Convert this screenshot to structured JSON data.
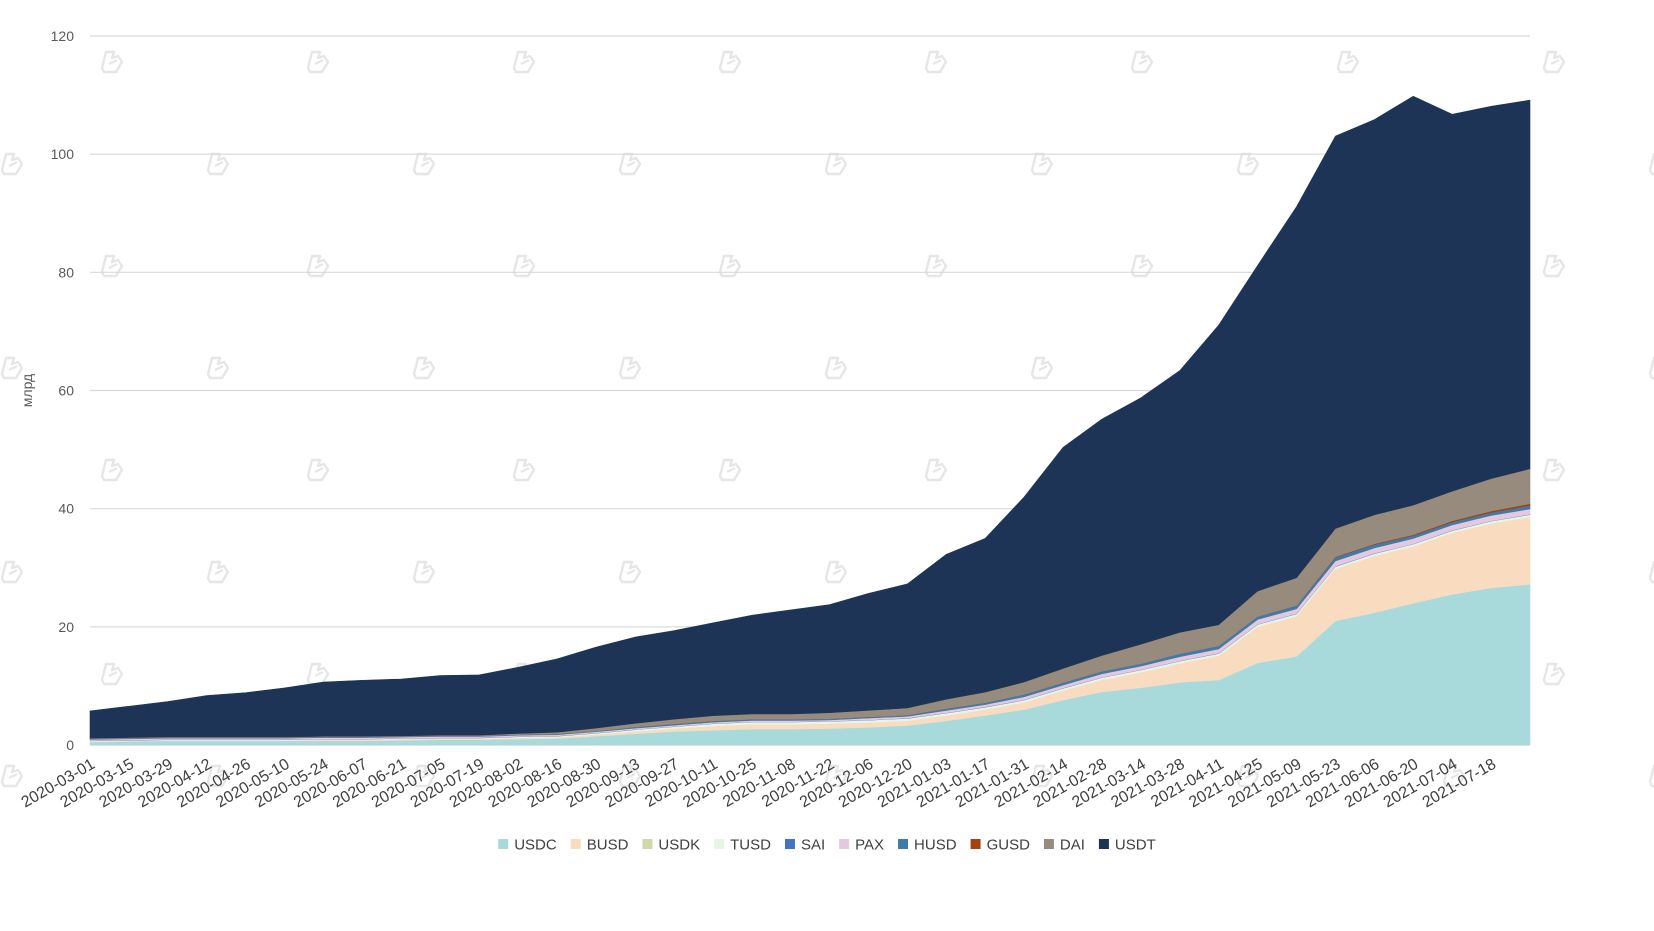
{
  "chart_data": {
    "type": "area",
    "stacked": true,
    "title": "",
    "xlabel": "",
    "ylabel": "млрд",
    "ylim": [
      0,
      120
    ],
    "y_ticks": [
      0,
      20,
      40,
      60,
      80,
      100,
      120
    ],
    "grid": "horizontal",
    "legend_position": "bottom",
    "x": [
      "2020-03-01",
      "2020-03-15",
      "2020-03-29",
      "2020-04-12",
      "2020-04-26",
      "2020-05-10",
      "2020-05-24",
      "2020-06-07",
      "2020-06-21",
      "2020-07-05",
      "2020-07-19",
      "2020-08-02",
      "2020-08-16",
      "2020-08-30",
      "2020-09-13",
      "2020-09-27",
      "2020-10-11",
      "2020-10-25",
      "2020-11-08",
      "2020-11-22",
      "2020-12-06",
      "2020-12-20",
      "2021-01-03",
      "2021-01-17",
      "2021-01-31",
      "2021-02-14",
      "2021-02-28",
      "2021-03-14",
      "2021-03-28",
      "2021-04-11",
      "2021-04-25",
      "2021-05-09",
      "2021-05-23",
      "2021-06-06",
      "2021-06-20",
      "2021-07-04",
      "2021-07-18",
      "2021-08-01"
    ],
    "x_tick_labels": [
      "2020-03-01",
      "2020-03-15",
      "2020-03-29",
      "2020-04-12",
      "2020-04-26",
      "2020-05-10",
      "2020-05-24",
      "2020-06-07",
      "2020-06-21",
      "2020-07-05",
      "2020-07-19",
      "2020-08-02",
      "2020-08-16",
      "2020-08-30",
      "2020-09-13",
      "2020-09-27",
      "2020-10-11",
      "2020-10-25",
      "2020-11-08",
      "2020-11-22",
      "2020-12-06",
      "2020-12-20",
      "2021-01-03",
      "2021-01-17",
      "2021-01-31",
      "2021-02-14",
      "2021-02-28",
      "2021-03-14",
      "2021-03-28",
      "2021-04-11",
      "2021-04-25",
      "2021-05-09",
      "2021-05-23",
      "2021-06-06",
      "2021-06-20",
      "2021-07-04",
      "2021-07-18"
    ],
    "series": [
      {
        "name": "USDC",
        "color": "#a8dadc",
        "values": [
          0.5,
          0.6,
          0.7,
          0.7,
          0.7,
          0.7,
          0.7,
          0.7,
          0.8,
          0.9,
          0.9,
          1.0,
          1.1,
          1.5,
          1.9,
          2.3,
          2.5,
          2.7,
          2.7,
          2.8,
          3.0,
          3.3,
          4.1,
          5.0,
          6.0,
          7.6,
          9.0,
          9.7,
          10.6,
          11.0,
          13.9,
          15.0,
          21.0,
          22.4,
          24.0,
          25.5,
          26.6,
          27.2
        ]
      },
      {
        "name": "BUSD",
        "color": "#f9dcc0",
        "values": [
          0.1,
          0.1,
          0.1,
          0.1,
          0.1,
          0.1,
          0.2,
          0.2,
          0.2,
          0.2,
          0.2,
          0.2,
          0.2,
          0.3,
          0.4,
          0.5,
          0.7,
          0.8,
          0.8,
          0.8,
          0.8,
          0.8,
          0.9,
          1.0,
          1.2,
          1.6,
          2.0,
          2.6,
          3.2,
          4.1,
          6.1,
          6.8,
          8.8,
          9.6,
          9.6,
          10.4,
          10.9,
          11.4
        ]
      },
      {
        "name": "USDK",
        "color": "#d2d7a8",
        "values": [
          0.0,
          0.0,
          0.0,
          0.0,
          0.0,
          0.0,
          0.0,
          0.0,
          0.0,
          0.0,
          0.0,
          0.0,
          0.0,
          0.0,
          0.0,
          0.0,
          0.0,
          0.0,
          0.0,
          0.0,
          0.0,
          0.0,
          0.0,
          0.0,
          0.0,
          0.0,
          0.0,
          0.0,
          0.0,
          0.0,
          0.0,
          0.0,
          0.0,
          0.0,
          0.0,
          0.0,
          0.0,
          0.0
        ]
      },
      {
        "name": "TUSD",
        "color": "#e7f5e7",
        "values": [
          0.1,
          0.1,
          0.1,
          0.1,
          0.1,
          0.1,
          0.1,
          0.1,
          0.1,
          0.1,
          0.1,
          0.2,
          0.2,
          0.2,
          0.3,
          0.3,
          0.4,
          0.4,
          0.4,
          0.4,
          0.4,
          0.4,
          0.4,
          0.4,
          0.4,
          0.4,
          0.4,
          0.4,
          0.4,
          0.4,
          0.4,
          0.4,
          0.4,
          0.4,
          0.4,
          0.4,
          0.4,
          0.4
        ]
      },
      {
        "name": "SAI",
        "color": "#4472c4",
        "values": [
          0.05,
          0.05,
          0.05,
          0.05,
          0.05,
          0.05,
          0.05,
          0.05,
          0.05,
          0.05,
          0.05,
          0.05,
          0.05,
          0.05,
          0.05,
          0.05,
          0.05,
          0.05,
          0.05,
          0.05,
          0.05,
          0.05,
          0.05,
          0.05,
          0.05,
          0.05,
          0.05,
          0.05,
          0.05,
          0.05,
          0.05,
          0.05,
          0.05,
          0.05,
          0.05,
          0.05,
          0.05,
          0.05
        ]
      },
      {
        "name": "PAX",
        "color": "#e6c7e0",
        "values": [
          0.2,
          0.2,
          0.2,
          0.2,
          0.2,
          0.2,
          0.2,
          0.2,
          0.2,
          0.2,
          0.2,
          0.2,
          0.2,
          0.2,
          0.2,
          0.2,
          0.2,
          0.2,
          0.2,
          0.2,
          0.3,
          0.3,
          0.4,
          0.4,
          0.5,
          0.5,
          0.6,
          0.6,
          0.7,
          0.7,
          0.8,
          0.8,
          0.9,
          0.9,
          0.9,
          0.9,
          0.9,
          0.9
        ]
      },
      {
        "name": "HUSD",
        "color": "#3e7ca8",
        "values": [
          0.1,
          0.1,
          0.1,
          0.1,
          0.1,
          0.1,
          0.1,
          0.1,
          0.1,
          0.1,
          0.1,
          0.1,
          0.1,
          0.1,
          0.2,
          0.2,
          0.2,
          0.2,
          0.2,
          0.2,
          0.2,
          0.2,
          0.3,
          0.3,
          0.4,
          0.4,
          0.4,
          0.4,
          0.5,
          0.5,
          0.5,
          0.5,
          0.6,
          0.6,
          0.5,
          0.5,
          0.5,
          0.6
        ]
      },
      {
        "name": "GUSD",
        "color": "#a5410c",
        "values": [
          0.01,
          0.01,
          0.01,
          0.01,
          0.01,
          0.01,
          0.01,
          0.01,
          0.01,
          0.01,
          0.01,
          0.01,
          0.01,
          0.01,
          0.01,
          0.01,
          0.01,
          0.01,
          0.01,
          0.01,
          0.01,
          0.01,
          0.01,
          0.01,
          0.01,
          0.01,
          0.01,
          0.01,
          0.01,
          0.01,
          0.01,
          0.05,
          0.1,
          0.1,
          0.15,
          0.2,
          0.25,
          0.3
        ]
      },
      {
        "name": "DAI",
        "color": "#978b7d",
        "values": [
          0.1,
          0.1,
          0.1,
          0.1,
          0.1,
          0.1,
          0.1,
          0.1,
          0.1,
          0.1,
          0.1,
          0.2,
          0.3,
          0.5,
          0.6,
          0.8,
          0.9,
          0.9,
          0.9,
          1.0,
          1.1,
          1.2,
          1.6,
          1.8,
          2.1,
          2.4,
          2.7,
          3.3,
          3.6,
          3.6,
          4.3,
          4.7,
          4.8,
          4.9,
          5.0,
          5.0,
          5.5,
          5.9
        ]
      },
      {
        "name": "USDT",
        "color": "#1e3456",
        "values": [
          4.6,
          5.3,
          6.0,
          7.0,
          7.5,
          8.3,
          9.2,
          9.5,
          9.6,
          10.1,
          10.2,
          11.2,
          12.4,
          13.7,
          14.6,
          15.0,
          15.7,
          16.7,
          17.6,
          18.3,
          19.8,
          21.0,
          24.5,
          26.0,
          31.3,
          37.4,
          40.0,
          41.7,
          44.3,
          50.7,
          55.1,
          62.8,
          66.4,
          66.9,
          69.2,
          63.8,
          63.0,
          62.4
        ]
      }
    ]
  }
}
